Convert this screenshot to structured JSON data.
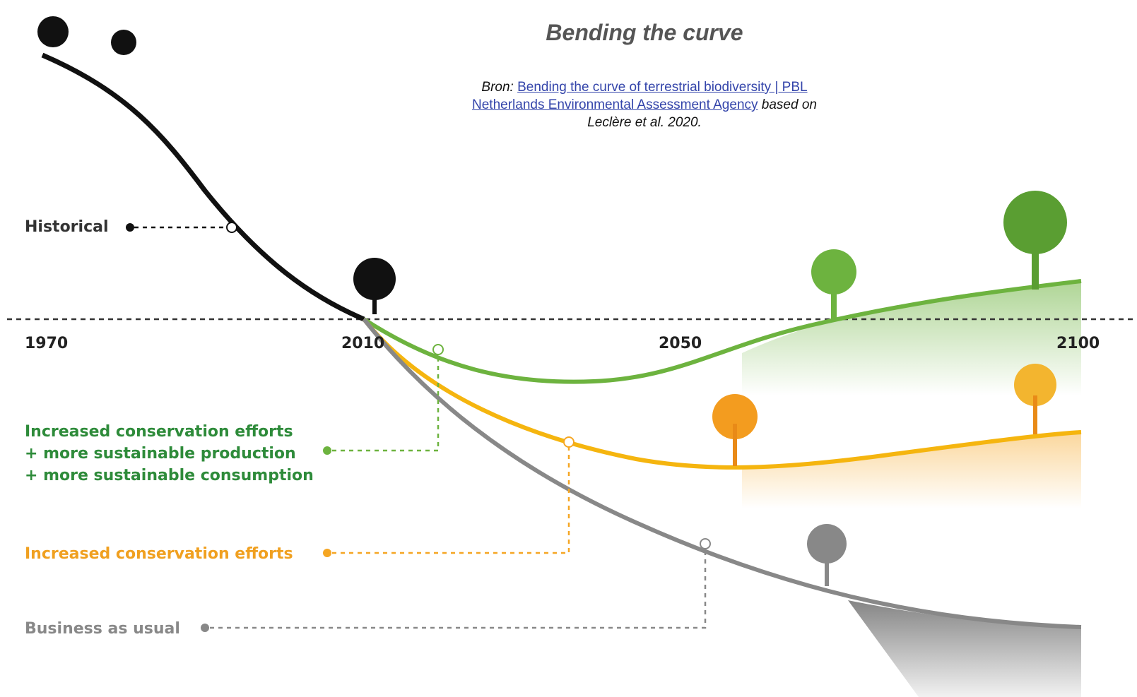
{
  "header": {
    "title": "Bending the curve"
  },
  "source": {
    "prefix": "Bron:",
    "link": "Bending the curve of terrestrial biodiversity | PBL Netherlands Environmental Assessment Agency",
    "suffix": "based on",
    "citation": "Leclère et al. 2020."
  },
  "timeline": {
    "years": [
      "1970",
      "2010",
      "2050",
      "2100"
    ]
  },
  "labels": {
    "historical": "Historical",
    "scenarios": [
      {
        "lines": [
          "Increased conservation efforts",
          "+ more sustainable production",
          "+ more sustainable consumption"
        ]
      },
      {
        "lines": [
          "Increased conservation efforts"
        ]
      },
      {
        "lines": [
          "Business as usual"
        ]
      }
    ]
  }
}
